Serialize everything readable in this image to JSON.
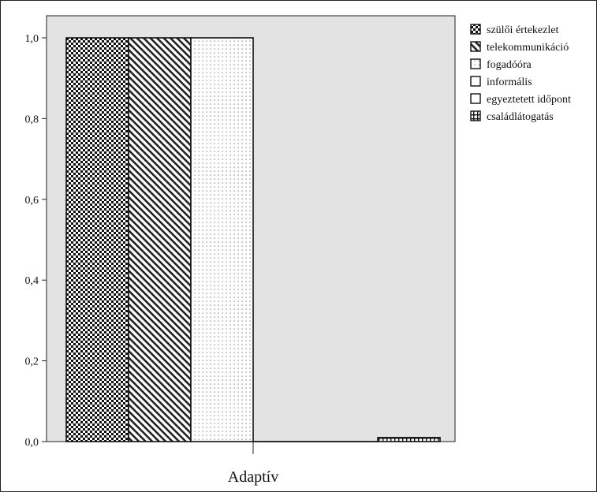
{
  "chart_data": {
    "type": "bar",
    "categories": [
      "Adaptív"
    ],
    "series": [
      {
        "name": "szülői értekezlet",
        "values": [
          1.0
        ],
        "pattern": "checker"
      },
      {
        "name": "telekommunikáció",
        "values": [
          1.0
        ],
        "pattern": "diagonal"
      },
      {
        "name": "fogadóóra",
        "values": [
          1.0
        ],
        "pattern": "dots"
      },
      {
        "name": "informális",
        "values": [
          0.0
        ],
        "pattern": "none"
      },
      {
        "name": "egyeztetett időpont",
        "values": [
          0.0
        ],
        "pattern": "none"
      },
      {
        "name": "családlátogatás",
        "values": [
          0.01
        ],
        "pattern": "grid"
      }
    ],
    "ylim": [
      0,
      1.0
    ],
    "yticks": [
      "0,0",
      "0,2",
      "0,4",
      "0,6",
      "0,8",
      "1,0"
    ],
    "grid": false,
    "legend_position": "top-right",
    "title": "",
    "xlabel": "",
    "ylabel": "",
    "colors": {
      "plot_background": "#e3e3e3",
      "bar_stroke": "#111111",
      "frame": "#222222"
    }
  }
}
